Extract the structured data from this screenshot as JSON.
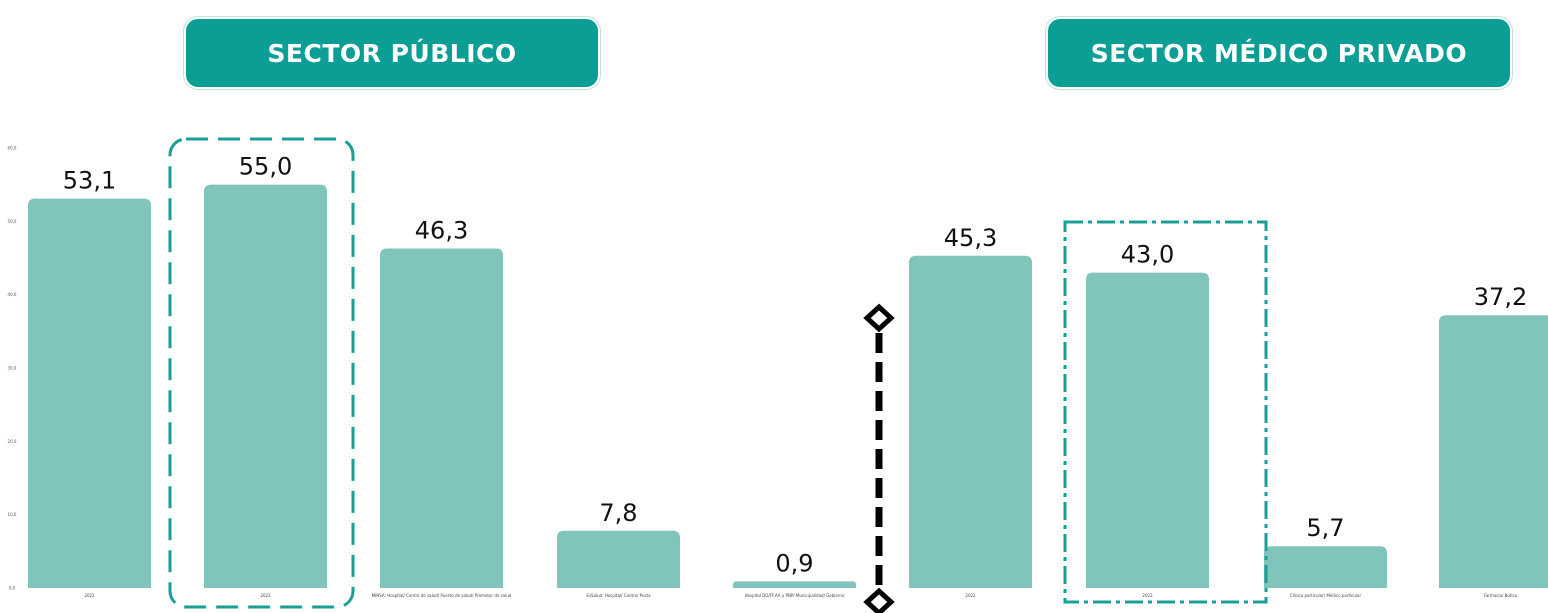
{
  "headers": {
    "public": "SECTOR PÚBLICO",
    "private": "SECTOR MÉDICO PRIVADO"
  },
  "colors": {
    "bar": "#80c4bc",
    "header_bg": "#0b9e94",
    "highlight_dash": "#1a9f95",
    "divider": "#000000"
  },
  "chart_data": {
    "type": "bar",
    "categories": [
      "2022",
      "2023",
      "MINSA: Hospital/ Centro de salud/ Puesto de salud/ Promotor de salud",
      "EsSalud: Hospital/ Centro/ Posta",
      "Hospital DO/FF.AA y PNP/ Municipalidad/ Gobierno",
      "2022",
      "2023",
      "Clínica particular/ Médico particular",
      "Farmacia/ Botica"
    ],
    "values": [
      53.1,
      55.0,
      46.3,
      7.8,
      0.9,
      45.3,
      43.0,
      5.7,
      37.2
    ],
    "value_labels": [
      "53,1",
      "55,0",
      "46,3",
      "7,8",
      "0,9",
      "45,3",
      "43,0",
      "5,7",
      "37,2"
    ],
    "yticks": [
      "0,0",
      "10,0",
      "20,0",
      "30,0",
      "40,0",
      "50,0",
      "60,0"
    ],
    "ylim": [
      0,
      60
    ],
    "highlighted_categories": [
      1,
      6
    ],
    "groups": [
      "SECTOR PÚBLICO",
      "SECTOR MÉDICO PRIVADO"
    ]
  }
}
